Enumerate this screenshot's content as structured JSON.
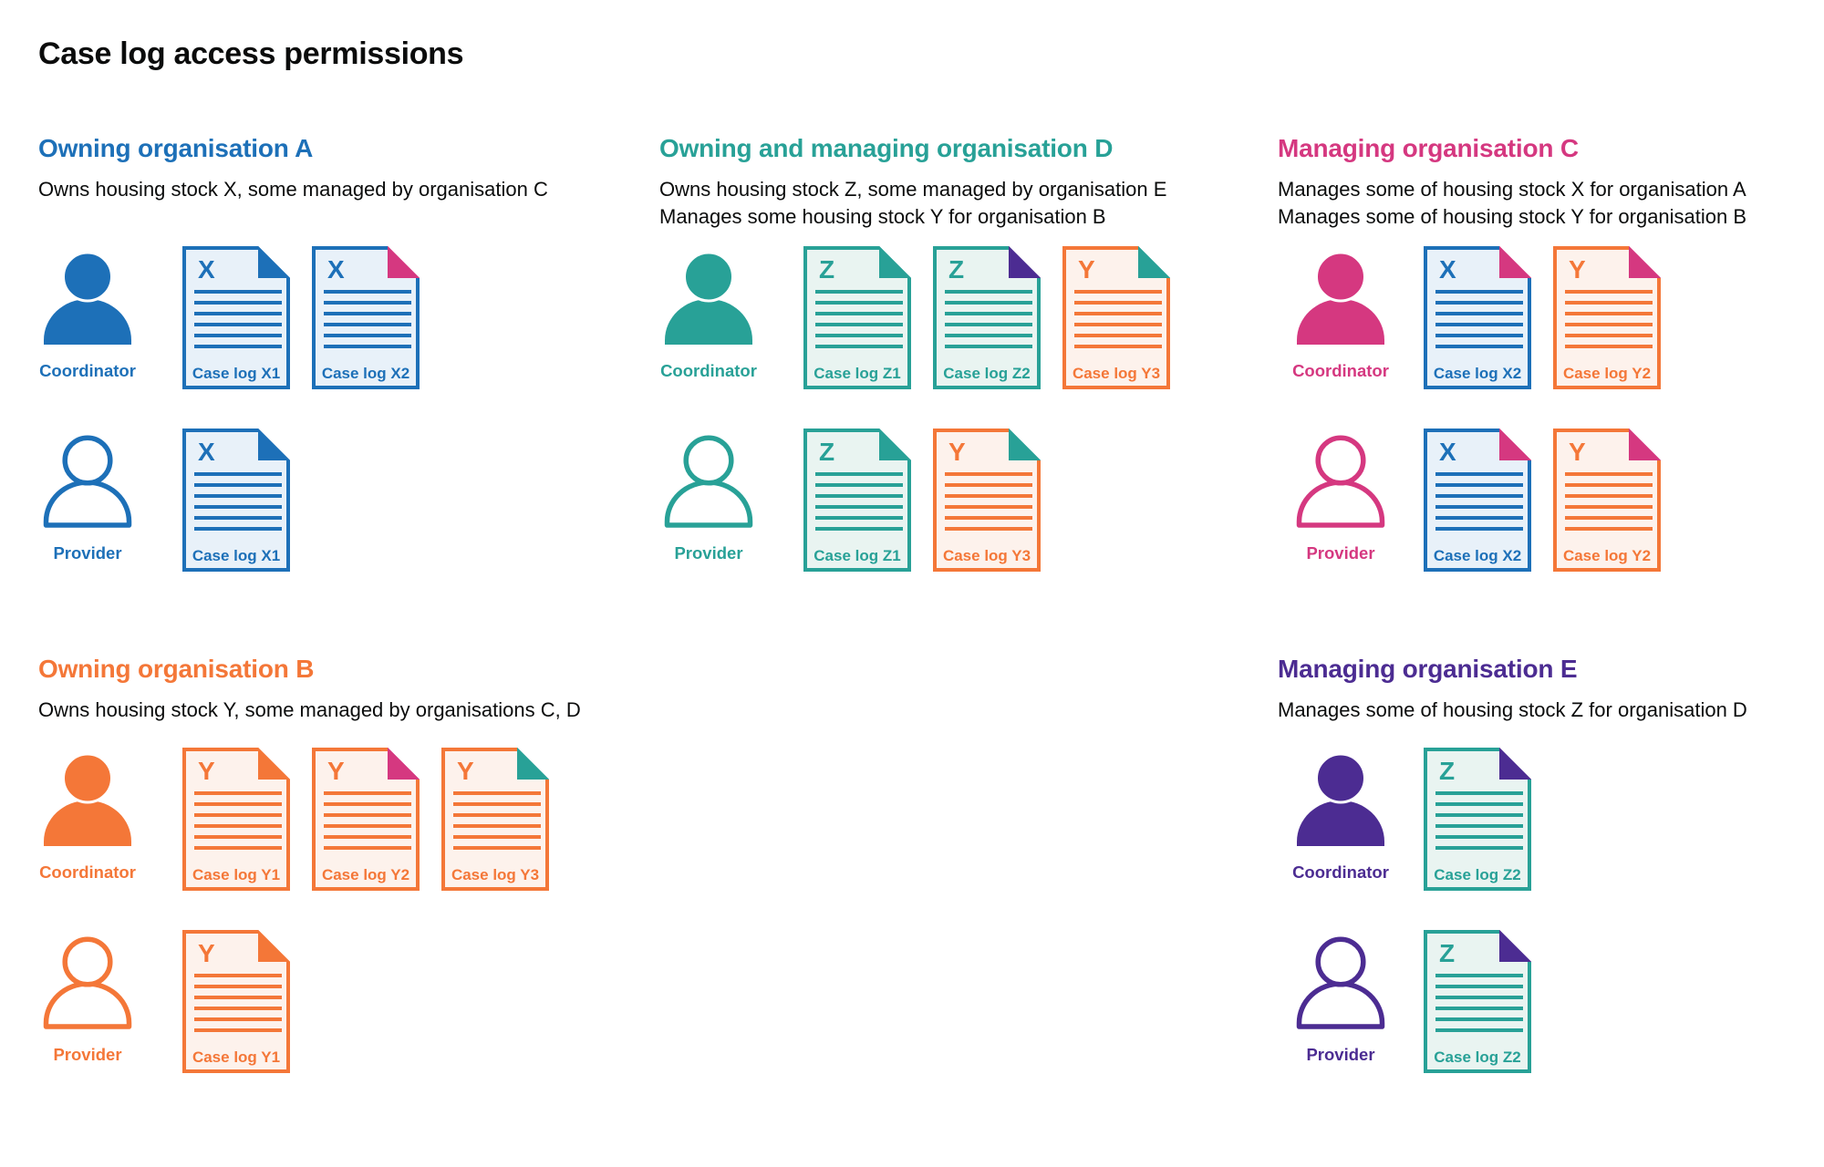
{
  "title": "Case log access permissions",
  "colors": {
    "blue": "#1d70b8",
    "teal": "#28a197",
    "orange": "#f47738",
    "pink": "#d53880",
    "purple": "#4c2c92",
    "text": "#0b0c0c",
    "background": "#ffffff",
    "doc_fills": {
      "blue": "#e8f1f9",
      "teal": "#e9f4f1",
      "orange": "#fdf2ec"
    }
  },
  "sections": [
    {
      "id": "org-a",
      "heading": "Owning organisation A",
      "color": "blue",
      "description": [
        "Owns housing stock X, some managed by organisation C"
      ],
      "rows": [
        {
          "role": "Coordinator",
          "person": "filled",
          "docs": [
            {
              "letter": "X",
              "label": "Case log X1",
              "doc": "blue",
              "fold": "blue"
            },
            {
              "letter": "X",
              "label": "Case log X2",
              "doc": "blue",
              "fold": "pink"
            }
          ]
        },
        {
          "role": "Provider",
          "person": "outline",
          "docs": [
            {
              "letter": "X",
              "label": "Case log X1",
              "doc": "blue",
              "fold": "blue"
            }
          ]
        }
      ]
    },
    {
      "id": "org-d",
      "heading": "Owning and managing organisation D",
      "color": "teal",
      "description": [
        "Owns housing stock Z, some managed by organisation E",
        "Manages some housing stock Y for organisation B"
      ],
      "rows": [
        {
          "role": "Coordinator",
          "person": "filled",
          "docs": [
            {
              "letter": "Z",
              "label": "Case log Z1",
              "doc": "teal",
              "fold": "teal"
            },
            {
              "letter": "Z",
              "label": "Case log Z2",
              "doc": "teal",
              "fold": "purple"
            },
            {
              "letter": "Y",
              "label": "Case log Y3",
              "doc": "orange",
              "fold": "teal"
            }
          ]
        },
        {
          "role": "Provider",
          "person": "outline",
          "docs": [
            {
              "letter": "Z",
              "label": "Case log Z1",
              "doc": "teal",
              "fold": "teal"
            },
            {
              "letter": "Y",
              "label": "Case log Y3",
              "doc": "orange",
              "fold": "teal"
            }
          ]
        }
      ]
    },
    {
      "id": "org-c",
      "heading": "Managing organisation C",
      "color": "pink",
      "description": [
        "Manages some of housing stock X for organisation A",
        "Manages some of housing stock Y for organisation B"
      ],
      "rows": [
        {
          "role": "Coordinator",
          "person": "filled",
          "docs": [
            {
              "letter": "X",
              "label": "Case log X2",
              "doc": "blue",
              "fold": "pink"
            },
            {
              "letter": "Y",
              "label": "Case log Y2",
              "doc": "orange",
              "fold": "pink"
            }
          ]
        },
        {
          "role": "Provider",
          "person": "outline",
          "docs": [
            {
              "letter": "X",
              "label": "Case log X2",
              "doc": "blue",
              "fold": "pink"
            },
            {
              "letter": "Y",
              "label": "Case log Y2",
              "doc": "orange",
              "fold": "pink"
            }
          ]
        }
      ]
    },
    {
      "id": "org-b",
      "heading": "Owning organisation B",
      "color": "orange",
      "description": [
        "Owns housing stock Y, some managed by organisations C, D"
      ],
      "rows": [
        {
          "role": "Coordinator",
          "person": "filled",
          "docs": [
            {
              "letter": "Y",
              "label": "Case log Y1",
              "doc": "orange",
              "fold": "orange"
            },
            {
              "letter": "Y",
              "label": "Case log Y2",
              "doc": "orange",
              "fold": "pink"
            },
            {
              "letter": "Y",
              "label": "Case log Y3",
              "doc": "orange",
              "fold": "teal"
            }
          ]
        },
        {
          "role": "Provider",
          "person": "outline",
          "docs": [
            {
              "letter": "Y",
              "label": "Case log Y1",
              "doc": "orange",
              "fold": "orange"
            }
          ]
        }
      ]
    },
    {
      "id": "org-e",
      "heading": "Managing organisation E",
      "color": "purple",
      "description": [
        "Manages some of housing stock Z for organisation D"
      ],
      "rows": [
        {
          "role": "Coordinator",
          "person": "filled",
          "docs": [
            {
              "letter": "Z",
              "label": "Case log Z2",
              "doc": "teal",
              "fold": "purple"
            }
          ]
        },
        {
          "role": "Provider",
          "person": "outline",
          "docs": [
            {
              "letter": "Z",
              "label": "Case log Z2",
              "doc": "teal",
              "fold": "purple"
            }
          ]
        }
      ]
    }
  ]
}
